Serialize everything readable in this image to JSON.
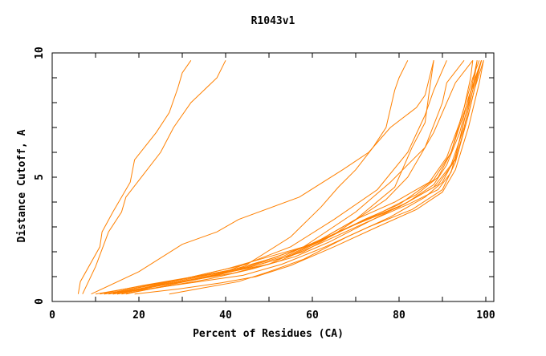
{
  "chart_data": {
    "type": "line",
    "title": "R1043v1",
    "xlabel": "Percent of Residues (CA)",
    "ylabel": "Distance Cutoff, A",
    "xlim": [
      0,
      100
    ],
    "ylim": [
      0,
      10
    ],
    "x_ticks": [
      "0",
      "20",
      "40",
      "60",
      "80",
      "100"
    ],
    "y_ticks": [
      "0",
      "5",
      "10"
    ],
    "grid": false,
    "line_color": "#ff8000",
    "series": [
      {
        "points": [
          [
            6,
            0.3
          ],
          [
            6.5,
            0.8
          ],
          [
            11,
            2.2
          ],
          [
            11.5,
            2.8
          ],
          [
            14,
            3.6
          ],
          [
            18,
            4.8
          ],
          [
            19,
            5.7
          ],
          [
            24,
            6.8
          ],
          [
            27,
            7.6
          ],
          [
            29,
            8.6
          ],
          [
            30,
            9.2
          ],
          [
            32,
            9.7
          ]
        ]
      },
      {
        "points": [
          [
            7,
            0.3
          ],
          [
            10,
            1.4
          ],
          [
            13,
            2.8
          ],
          [
            16,
            3.6
          ],
          [
            17,
            4.2
          ],
          [
            21,
            5.1
          ],
          [
            25,
            6.0
          ],
          [
            28,
            7.0
          ],
          [
            32,
            8.0
          ],
          [
            38,
            9.0
          ],
          [
            40,
            9.7
          ]
        ]
      },
      {
        "points": [
          [
            9,
            0.3
          ],
          [
            20,
            1.2
          ],
          [
            30,
            2.3
          ],
          [
            38,
            2.8
          ],
          [
            43,
            3.3
          ],
          [
            57,
            4.2
          ],
          [
            67,
            5.3
          ],
          [
            73,
            6.0
          ],
          [
            78,
            7.0
          ],
          [
            84,
            7.8
          ],
          [
            86,
            8.3
          ],
          [
            88,
            9.7
          ]
        ]
      },
      {
        "points": [
          [
            12,
            0.3
          ],
          [
            30,
            0.9
          ],
          [
            45,
            1.5
          ],
          [
            55,
            2.6
          ],
          [
            62,
            3.8
          ],
          [
            66,
            4.6
          ],
          [
            70,
            5.3
          ],
          [
            74,
            6.2
          ],
          [
            77,
            7.0
          ],
          [
            79,
            8.5
          ],
          [
            80,
            9.0
          ],
          [
            82,
            9.7
          ]
        ]
      },
      {
        "points": [
          [
            14,
            0.3
          ],
          [
            40,
            1.2
          ],
          [
            55,
            2.2
          ],
          [
            65,
            3.3
          ],
          [
            75,
            4.5
          ],
          [
            82,
            6.0
          ],
          [
            86,
            7.5
          ],
          [
            88,
            8.5
          ],
          [
            91,
            9.7
          ]
        ]
      },
      {
        "points": [
          [
            14,
            0.35
          ],
          [
            45,
            1.4
          ],
          [
            60,
            2.3
          ],
          [
            70,
            3.3
          ],
          [
            79,
            4.6
          ],
          [
            83,
            6.2
          ],
          [
            86,
            7.2
          ],
          [
            87,
            8.5
          ],
          [
            88,
            9.7
          ]
        ]
      },
      {
        "points": [
          [
            15,
            0.3
          ],
          [
            40,
            1.3
          ],
          [
            58,
            2.2
          ],
          [
            70,
            3.6
          ],
          [
            78,
            4.8
          ],
          [
            86,
            6.2
          ],
          [
            90,
            8.0
          ],
          [
            91,
            8.8
          ],
          [
            95,
            9.7
          ]
        ]
      },
      {
        "points": [
          [
            15,
            0.3
          ],
          [
            50,
            1.5
          ],
          [
            65,
            2.7
          ],
          [
            77,
            4.1
          ],
          [
            82,
            5.0
          ],
          [
            88,
            6.8
          ],
          [
            93,
            8.8
          ],
          [
            97,
            9.7
          ]
        ]
      },
      {
        "points": [
          [
            10,
            0.3
          ],
          [
            20,
            0.6
          ],
          [
            30,
            0.9
          ],
          [
            40,
            1.2
          ],
          [
            50,
            1.7
          ],
          [
            60,
            2.3
          ],
          [
            70,
            3.1
          ],
          [
            80,
            3.8
          ],
          [
            88,
            4.6
          ],
          [
            92,
            5.5
          ],
          [
            95,
            7.0
          ],
          [
            97,
            8.5
          ],
          [
            99,
            9.7
          ]
        ]
      },
      {
        "points": [
          [
            11,
            0.3
          ],
          [
            21,
            0.65
          ],
          [
            31,
            0.95
          ],
          [
            41,
            1.25
          ],
          [
            51,
            1.75
          ],
          [
            61,
            2.4
          ],
          [
            71,
            3.2
          ],
          [
            81,
            3.9
          ],
          [
            89,
            4.7
          ],
          [
            93,
            5.7
          ],
          [
            95.5,
            7.2
          ],
          [
            97.5,
            8.6
          ],
          [
            99.5,
            9.7
          ]
        ]
      },
      {
        "points": [
          [
            12,
            0.3
          ],
          [
            22,
            0.55
          ],
          [
            32,
            0.85
          ],
          [
            42,
            1.15
          ],
          [
            52,
            1.6
          ],
          [
            62,
            2.35
          ],
          [
            72,
            3.15
          ],
          [
            82,
            3.9
          ],
          [
            89,
            4.5
          ],
          [
            92,
            5.2
          ],
          [
            94,
            6.5
          ],
          [
            96,
            8.0
          ],
          [
            98,
            9.7
          ]
        ]
      },
      {
        "points": [
          [
            13,
            0.3
          ],
          [
            23,
            0.6
          ],
          [
            33,
            0.9
          ],
          [
            43,
            1.3
          ],
          [
            53,
            1.8
          ],
          [
            62,
            2.5
          ],
          [
            70,
            3.3
          ],
          [
            79,
            4.0
          ],
          [
            87,
            4.8
          ],
          [
            91,
            5.8
          ],
          [
            94,
            7.2
          ],
          [
            97,
            9.0
          ],
          [
            98.5,
            9.7
          ]
        ]
      },
      {
        "points": [
          [
            14,
            0.3
          ],
          [
            24,
            0.55
          ],
          [
            34,
            0.8
          ],
          [
            44,
            1.05
          ],
          [
            53,
            1.5
          ],
          [
            63,
            2.2
          ],
          [
            73,
            3.0
          ],
          [
            83,
            3.7
          ],
          [
            90,
            4.5
          ],
          [
            93,
            5.6
          ],
          [
            96,
            7.5
          ],
          [
            98,
            9.0
          ],
          [
            99,
            9.7
          ]
        ]
      },
      {
        "points": [
          [
            15,
            0.3
          ],
          [
            25,
            0.65
          ],
          [
            35,
            0.95
          ],
          [
            45,
            1.35
          ],
          [
            55,
            1.85
          ],
          [
            64,
            2.6
          ],
          [
            72,
            3.3
          ],
          [
            80,
            3.9
          ],
          [
            88,
            4.9
          ],
          [
            92,
            6.0
          ],
          [
            95,
            7.8
          ],
          [
            96.5,
            9.0
          ],
          [
            97,
            9.7
          ]
        ]
      },
      {
        "points": [
          [
            19,
            0.3
          ],
          [
            29,
            0.5
          ],
          [
            39,
            0.75
          ],
          [
            47,
            1.0
          ],
          [
            55,
            1.45
          ],
          [
            65,
            2.2
          ],
          [
            75,
            3.0
          ],
          [
            84,
            3.7
          ],
          [
            90,
            4.4
          ],
          [
            93,
            5.3
          ],
          [
            96,
            7.0
          ],
          [
            98.5,
            8.8
          ],
          [
            99.5,
            9.7
          ]
        ]
      },
      {
        "points": [
          [
            27,
            0.3
          ],
          [
            35,
            0.55
          ],
          [
            43,
            0.8
          ],
          [
            50,
            1.2
          ],
          [
            58,
            1.7
          ],
          [
            68,
            2.6
          ],
          [
            78,
            3.4
          ],
          [
            86,
            4.2
          ],
          [
            90,
            4.8
          ],
          [
            93,
            5.8
          ],
          [
            95,
            7.3
          ],
          [
            97,
            8.5
          ],
          [
            98,
            9.7
          ]
        ]
      },
      {
        "points": [
          [
            16,
            0.3
          ],
          [
            26,
            0.6
          ],
          [
            36,
            0.9
          ],
          [
            46,
            1.3
          ],
          [
            56,
            1.8
          ],
          [
            64,
            2.4
          ],
          [
            74,
            3.3
          ],
          [
            82,
            4.0
          ],
          [
            88,
            4.7
          ],
          [
            91,
            5.5
          ],
          [
            94,
            6.8
          ],
          [
            96,
            8.2
          ],
          [
            99,
            9.7
          ]
        ]
      },
      {
        "points": [
          [
            17,
            0.3
          ],
          [
            28,
            0.7
          ],
          [
            38,
            1.05
          ],
          [
            48,
            1.5
          ],
          [
            58,
            2.0
          ],
          [
            66,
            2.8
          ],
          [
            76,
            3.6
          ],
          [
            84,
            4.3
          ],
          [
            89,
            5.0
          ],
          [
            92,
            6.0
          ],
          [
            95,
            7.6
          ],
          [
            98,
            9.2
          ],
          [
            99,
            9.7
          ]
        ]
      }
    ]
  }
}
